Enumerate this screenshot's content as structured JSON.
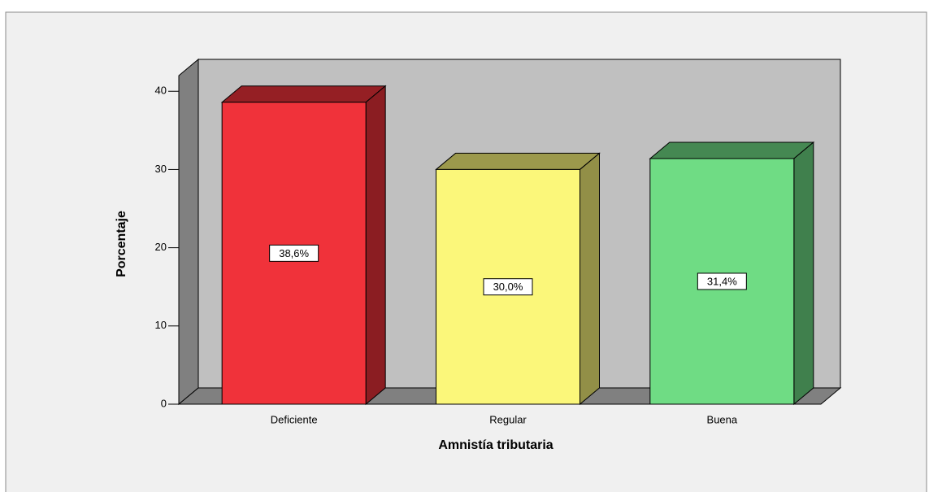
{
  "chart_data": {
    "type": "bar",
    "categories": [
      "Deficiente",
      "Regular",
      "Buena"
    ],
    "values": [
      38.6,
      30.0,
      31.4
    ],
    "value_labels": [
      "38,6%",
      "30,0%",
      "31,4%"
    ],
    "colors": [
      "#f0323a",
      "#fbf77a",
      "#6fdc84"
    ],
    "x_label": "Amnistía tributaria",
    "y_label": "Porcentaje",
    "ylim": [
      0,
      42
    ],
    "yticks": [
      0,
      10,
      20,
      30,
      40
    ]
  }
}
